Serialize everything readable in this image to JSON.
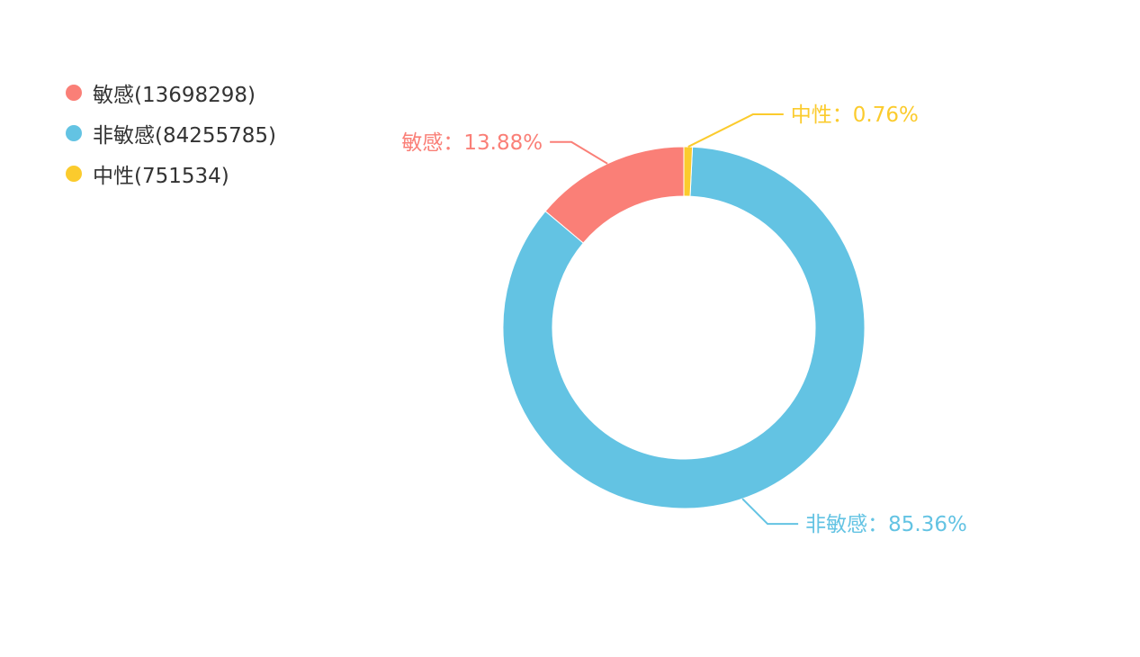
{
  "chart_data": {
    "type": "pie",
    "variant": "donut",
    "legend_position": "top-left",
    "slices": [
      {
        "name": "敏感",
        "value": 13698298,
        "percent_label": "13.88%",
        "color": "#fa7f77",
        "legend_text": "敏感(13698298)",
        "label_text": "敏感：13.88%"
      },
      {
        "name": "非敏感",
        "value": 84255785,
        "percent_label": "85.36%",
        "color": "#63c3e3",
        "legend_text": "非敏感(84255785)",
        "label_text": "非敏感：85.36%"
      },
      {
        "name": "中性",
        "value": 751534,
        "percent_label": "0.76%",
        "color": "#fbcb2d",
        "legend_text": "中性(751534)",
        "label_text": "中性：0.76%"
      }
    ]
  }
}
